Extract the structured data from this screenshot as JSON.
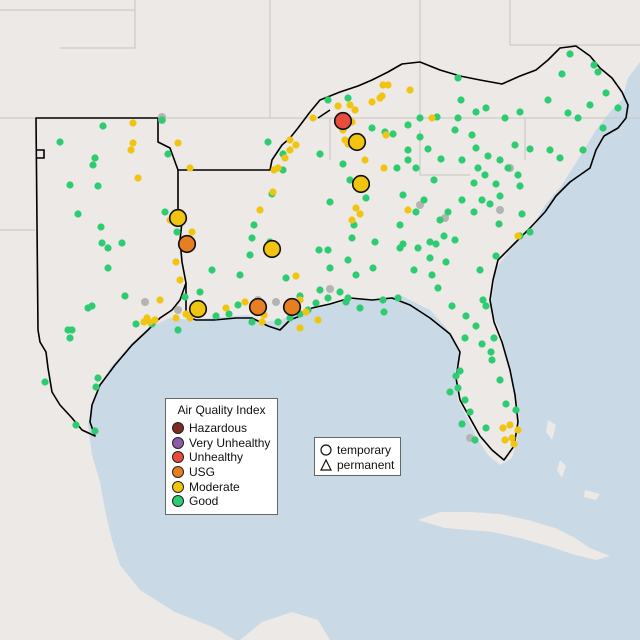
{
  "map": {
    "colors": {
      "ocean": "#c9d9e6",
      "land": "#ece9e6",
      "state_border": "#c8c4c0",
      "region_outline": "#000000",
      "unknown_monitor": "#b4b4b4"
    }
  },
  "aqi_legend": {
    "title": "Air Quality Index",
    "items": [
      {
        "label": "Hazardous",
        "color": "#7e2b22"
      },
      {
        "label": "Very Unhealthy",
        "color": "#8f5aa8"
      },
      {
        "label": "Unhealthy",
        "color": "#e74c3c"
      },
      {
        "label": "USG",
        "color": "#e67e22"
      },
      {
        "label": "Moderate",
        "color": "#f1c40f"
      },
      {
        "label": "Good",
        "color": "#2ecc71"
      }
    ]
  },
  "type_legend": {
    "items": [
      {
        "label": "temporary",
        "icon": "circle-icon"
      },
      {
        "label": "permanent",
        "icon": "triangle-icon"
      }
    ]
  }
}
